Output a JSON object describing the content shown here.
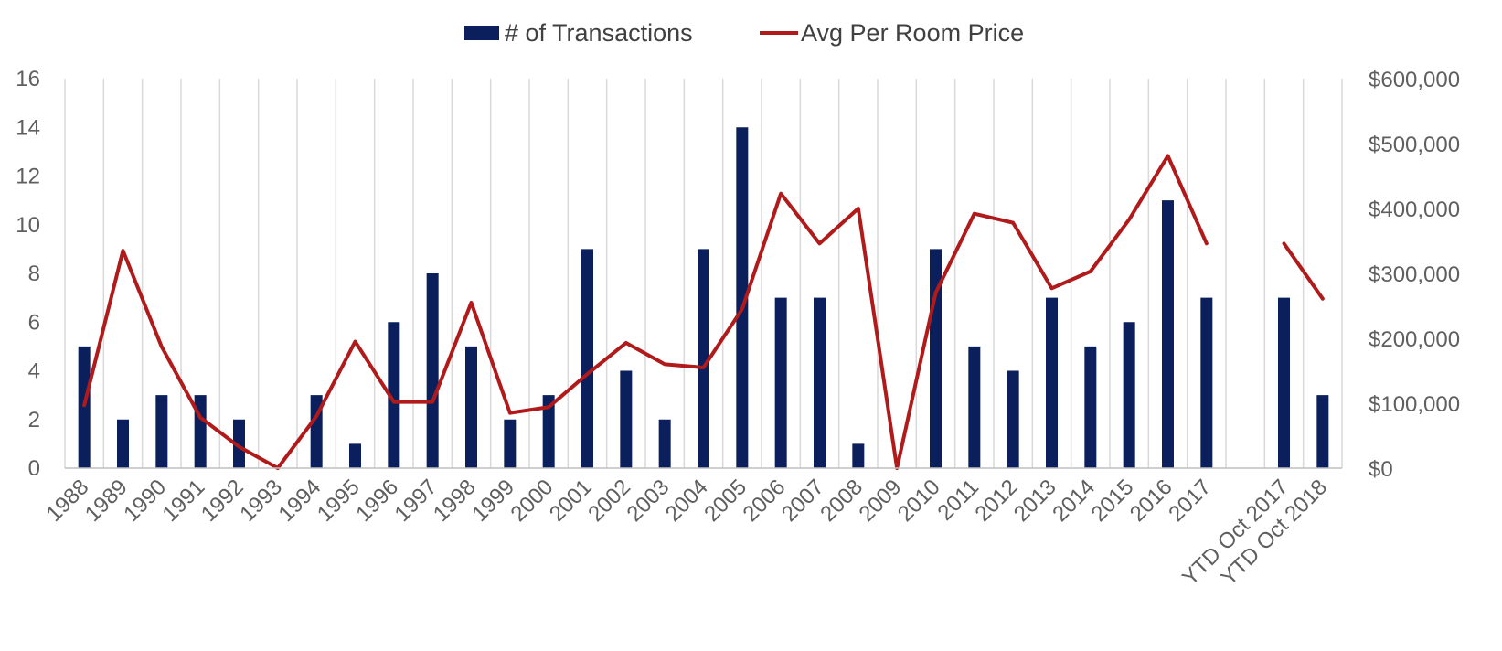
{
  "chart_data": {
    "type": "bar",
    "categories": [
      "1988",
      "1989",
      "1990",
      "1991",
      "1992",
      "1993",
      "1994",
      "1995",
      "1996",
      "1997",
      "1998",
      "1999",
      "2000",
      "2001",
      "2002",
      "2003",
      "2004",
      "2005",
      "2006",
      "2007",
      "2008",
      "2009",
      "2010",
      "2011",
      "2012",
      "2013",
      "2014",
      "2015",
      "2016",
      "2017",
      "",
      "YTD Oct 2017",
      "YTD Oct 2018"
    ],
    "series": [
      {
        "name": "# of Transactions",
        "type": "bar",
        "axis": "left",
        "color": "#0a1f5c",
        "values": [
          5,
          2,
          3,
          3,
          2,
          0,
          3,
          1,
          6,
          8,
          5,
          2,
          3,
          9,
          4,
          2,
          9,
          14,
          7,
          7,
          1,
          0,
          9,
          5,
          4,
          7,
          5,
          6,
          11,
          7,
          null,
          7,
          3
        ]
      },
      {
        "name": "Avg Per Room Price",
        "type": "line",
        "axis": "right",
        "color": "#b01a1a",
        "values": [
          97000,
          335000,
          187000,
          78000,
          33000,
          0,
          80000,
          195000,
          102000,
          102000,
          255000,
          85000,
          94000,
          145000,
          193000,
          160000,
          155000,
          245000,
          423000,
          346000,
          400000,
          0,
          270000,
          392000,
          378000,
          277000,
          303000,
          383000,
          481000,
          346000,
          null,
          346000,
          261000
        ]
      }
    ],
    "y_left": {
      "min": 0,
      "max": 16,
      "ticks": [
        "0",
        "2",
        "4",
        "6",
        "8",
        "10",
        "12",
        "14",
        "16"
      ]
    },
    "y_right": {
      "min": 0,
      "max": 600000,
      "ticks": [
        "$0",
        "$100,000",
        "$200,000",
        "$300,000",
        "$400,000",
        "$500,000",
        "$600,000"
      ]
    },
    "grid": "vertical",
    "legend_position": "top-center",
    "colors": {
      "gridline": "#d9d9d9",
      "axis": "#bfbfbf",
      "tick_text": "#5f5f5f",
      "legend_text": "#404040"
    }
  }
}
